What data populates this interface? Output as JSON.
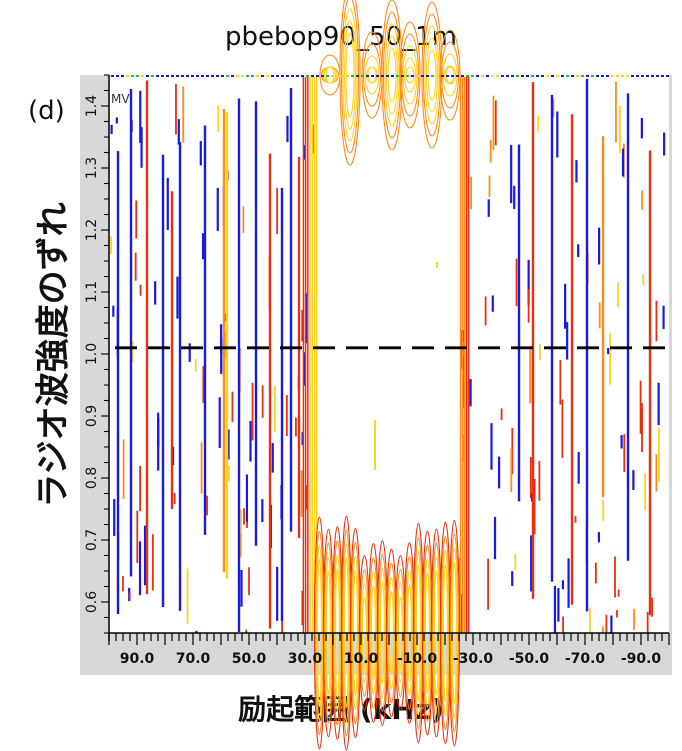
{
  "chart_data": {
    "type": "contour",
    "title": "pbebop90_50_1m",
    "panel_label": "(d)",
    "corner_label": "MV",
    "xlabel": "励起範囲 (kHz)",
    "ylabel": "ラジオ波強度のずれ",
    "x_ticks": [
      "90.0",
      "70.0",
      "50.0",
      "30.0",
      "10.0",
      "-10.0",
      "-30.0",
      "-50.0",
      "-70.0",
      "-90.0"
    ],
    "y_ticks": [
      "0.6",
      "0.7",
      "0.8",
      "0.9",
      "1.0",
      "1.1",
      "1.2",
      "1.3",
      "1.4"
    ],
    "xlim": [
      100.0,
      -100.0
    ],
    "ylim": [
      0.55,
      1.45
    ],
    "reference_line": {
      "y": 1.01,
      "style": "dashed"
    },
    "excitation_band_kHz": [
      27,
      -27
    ],
    "colors": {
      "low": "#1a1adc",
      "mid": "#e83010",
      "high": "#ffd21e",
      "orange": "#ff8c1a",
      "frame": "#d8d8d8"
    }
  }
}
